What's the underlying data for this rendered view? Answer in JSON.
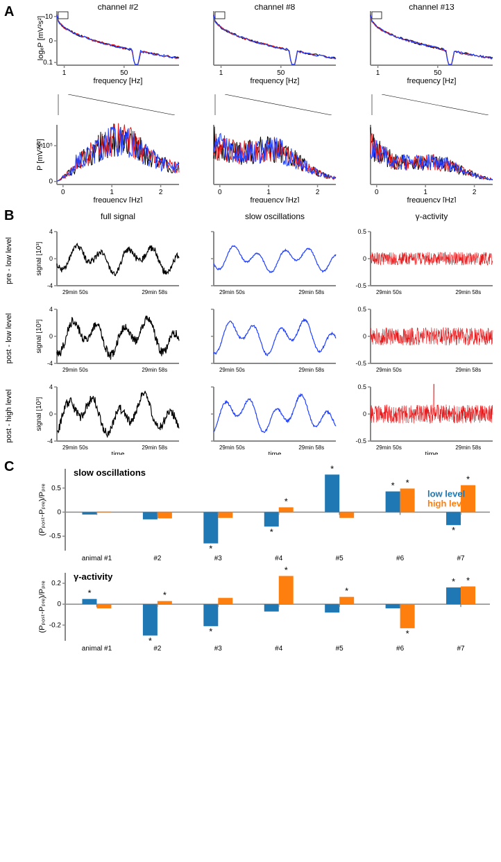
{
  "colors": {
    "black": "#000000",
    "red": "#e41a1c",
    "blue": "#2040ff",
    "axis": "#888888",
    "bar_blue": "#1f77b4",
    "bar_orange": "#ff7f0e",
    "white": "#ffffff"
  },
  "panelA": {
    "label": "A",
    "columns": [
      {
        "title": "channel #2"
      },
      {
        "title": "channel #8"
      },
      {
        "title": "channel #13"
      }
    ],
    "top": {
      "ylabel": "logₑP [mV²s²]",
      "xlabel": "frequency [Hz]",
      "ytick_labels": [
        "0.1",
        "0",
        "10"
      ],
      "ytick_pos": [
        0.95,
        0.55,
        0.1
      ],
      "xtick_labels": [
        "1",
        "50"
      ],
      "xtick_pos": [
        0.06,
        0.55
      ],
      "notch_x": 0.65
    },
    "bottom": {
      "ylabel": "P [mV²s²]",
      "xlabel": "frequency [Hz]",
      "ytick_labels": [
        "0",
        "5 10⁵"
      ],
      "ytick_pos": [
        0.95,
        0.35
      ],
      "xtick_labels": [
        "0",
        "1",
        "2"
      ],
      "xtick_pos": [
        0.05,
        0.45,
        0.85
      ],
      "shapes": [
        "rise-peak-fall",
        "decay-hump",
        "decay-low-hump"
      ]
    }
  },
  "panelB": {
    "label": "B",
    "col_titles": [
      "full signal",
      "slow oscillations",
      "γ-activity"
    ],
    "row_labels": [
      "pre - low level",
      "post - low level",
      "post - high level"
    ],
    "ylabel": "signal [10³]",
    "yticks_full": [
      "-4",
      "0",
      "4"
    ],
    "yticks_gamma": [
      "-0.5",
      "0",
      "0.5"
    ],
    "xticks": [
      "29min 50s",
      "29min 58s"
    ],
    "xlabel": "time",
    "colors_by_col": [
      "#000000",
      "#2040ff",
      "#e41a1c"
    ],
    "amp_scale": [
      0.7,
      0.95,
      1.0
    ],
    "gamma_spike_row": 2
  },
  "panelC": {
    "label": "C",
    "legend": {
      "low": "low level",
      "high": "high level"
    },
    "xticks": [
      "animal #1",
      "#2",
      "#3",
      "#4",
      "#5",
      "#6",
      "#7"
    ],
    "slow": {
      "title": "slow oscillations",
      "ylabel": "(Pₚₒₛₜ-Pₚᵣₑ)/Pₚᵣₑ",
      "ylim": [
        -0.8,
        0.9
      ],
      "yticks": [
        -0.5,
        0,
        0.5
      ],
      "bars": [
        {
          "low": -0.05,
          "high": 0.01,
          "sig_low": false,
          "sig_high": false
        },
        {
          "low": -0.15,
          "high": -0.13,
          "sig_low": false,
          "sig_high": false
        },
        {
          "low": -0.65,
          "high": -0.12,
          "sig_low": true,
          "sig_high": false
        },
        {
          "low": -0.3,
          "high": 0.1,
          "sig_low": true,
          "sig_high": true
        },
        {
          "low": 0.78,
          "high": -0.12,
          "sig_low": true,
          "sig_high": false
        },
        {
          "low": 0.43,
          "high": 0.49,
          "sig_low": true,
          "sig_high": true
        },
        {
          "low": -0.27,
          "high": 0.56,
          "sig_low": true,
          "sig_high": true
        }
      ]
    },
    "gamma": {
      "title": "γ-activity",
      "ylabel": "(Pₚₒₛₜ-Pₚᵣₑ)/Pₚᵣₑ",
      "ylim": [
        -0.35,
        0.3
      ],
      "yticks": [
        -0.2,
        0,
        0.2
      ],
      "bars": [
        {
          "low": 0.05,
          "high": -0.04,
          "sig_low": true,
          "sig_high": false
        },
        {
          "low": -0.3,
          "high": 0.03,
          "sig_low": true,
          "sig_high": true
        },
        {
          "low": -0.21,
          "high": 0.06,
          "sig_low": true,
          "sig_high": false
        },
        {
          "low": -0.07,
          "high": 0.27,
          "sig_low": false,
          "sig_high": true
        },
        {
          "low": -0.08,
          "high": 0.07,
          "sig_low": false,
          "sig_high": true
        },
        {
          "low": -0.04,
          "high": -0.23,
          "sig_low": false,
          "sig_high": true
        },
        {
          "low": 0.16,
          "high": 0.17,
          "sig_low": true,
          "sig_high": true
        }
      ]
    }
  }
}
